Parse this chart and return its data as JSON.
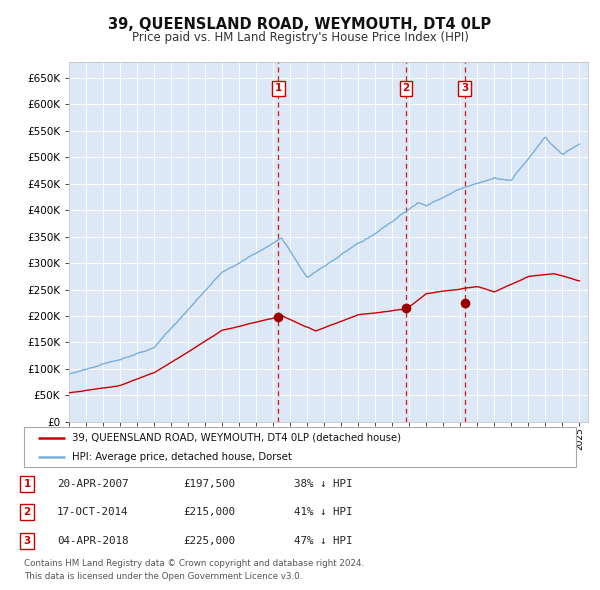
{
  "title": "39, QUEENSLAND ROAD, WEYMOUTH, DT4 0LP",
  "subtitle": "Price paid vs. HM Land Registry's House Price Index (HPI)",
  "background_color": "#dce8f5",
  "fig_bg_color": "#ffffff",
  "red_line_color": "#cc0000",
  "blue_line_color": "#7aafda",
  "red_dot_color": "#990000",
  "vline_color": "#cc0000",
  "ylim": [
    0,
    680000
  ],
  "yticks": [
    0,
    50000,
    100000,
    150000,
    200000,
    250000,
    300000,
    350000,
    400000,
    450000,
    500000,
    550000,
    600000,
    650000
  ],
  "xlim_start": 1995,
  "xlim_end": 2025.5,
  "transactions": [
    {
      "num": 1,
      "date": "20-APR-2007",
      "x_year": 2007.3,
      "price": 197500,
      "pct": "38%",
      "dir": "↓"
    },
    {
      "num": 2,
      "date": "17-OCT-2014",
      "x_year": 2014.8,
      "price": 215000,
      "pct": "41%",
      "dir": "↓"
    },
    {
      "num": 3,
      "date": "04-APR-2018",
      "x_year": 2018.25,
      "price": 225000,
      "pct": "47%",
      "dir": "↓"
    }
  ],
  "legend_entries": [
    "39, QUEENSLAND ROAD, WEYMOUTH, DT4 0LP (detached house)",
    "HPI: Average price, detached house, Dorset"
  ],
  "footer_lines": [
    "Contains HM Land Registry data © Crown copyright and database right 2024.",
    "This data is licensed under the Open Government Licence v3.0."
  ]
}
